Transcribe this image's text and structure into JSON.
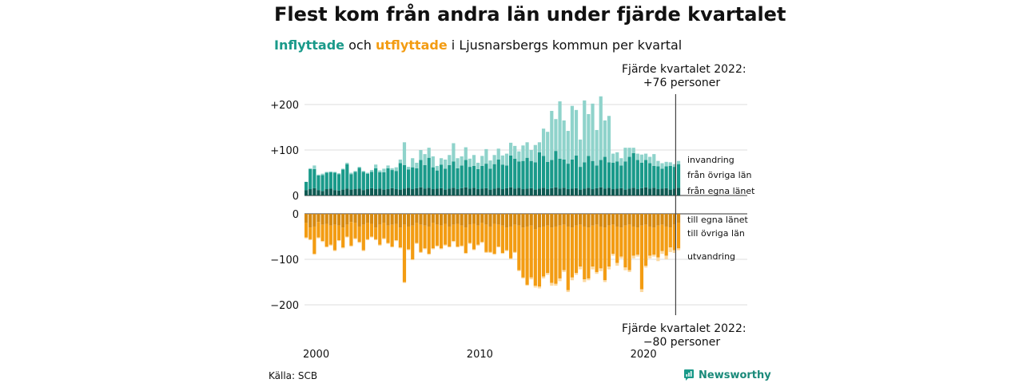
{
  "title": "Flest kom från andra län under fjärde kvartalet",
  "subtitle": {
    "inflyttade": "Inflyttade",
    "och": "och",
    "utflyttade": "utflyttade",
    "rest": "i Ljusnarsbergs kommun per kvartal"
  },
  "annotations": {
    "top_line1": "Fjärde kvartalet 2022:",
    "top_line2": "+76 personer",
    "bottom_line1": "Fjärde kvartalet 2022:",
    "bottom_line2": "−80 personer"
  },
  "source": "Källa: SCB",
  "brand": "Newsworthy",
  "brand_icon": "newsworthy-logo-icon",
  "colors": {
    "egna_in": "#0e5a52",
    "ovriga_in": "#1a9a8a",
    "invandring": "#8fd3cb",
    "egna_out": "#d68910",
    "ovriga_out": "#f39c12",
    "utvandring": "#fcd9a0",
    "grid": "#dddddd",
    "marker_line": "#444444"
  },
  "chart_data": {
    "type": "bar",
    "stacked": true,
    "x_start_year": 2000,
    "period": "quarter",
    "quarters": 92,
    "x_ticks": [
      "2000",
      "2010",
      "2020"
    ],
    "ylim_top": [
      0,
      220
    ],
    "ylim_bottom": [
      -220,
      0
    ],
    "y_ticks_top": [
      "+200",
      "+100",
      "0"
    ],
    "y_ticks_bottom": [
      "0",
      "−100",
      "−200"
    ],
    "grid": true,
    "series_in_labels": [
      "invandring",
      "från övriga län",
      "från egna länet"
    ],
    "series_out_labels": [
      "till egna länet",
      "till övriga län",
      "utvandring"
    ],
    "inflow": {
      "egna": [
        12,
        14,
        16,
        12,
        10,
        14,
        15,
        12,
        11,
        13,
        15,
        13,
        14,
        15,
        12,
        14,
        16,
        14,
        15,
        13,
        14,
        16,
        14,
        13,
        15,
        17,
        14,
        16,
        18,
        15,
        17,
        14,
        15,
        16,
        13,
        15,
        17,
        14,
        16,
        18,
        15,
        17,
        14,
        15,
        16,
        13,
        15,
        17,
        14,
        16,
        18,
        15,
        17,
        14,
        15,
        16,
        13,
        15,
        17,
        14,
        16,
        18,
        15,
        17,
        14,
        15,
        16,
        13,
        15,
        17,
        14,
        16,
        18,
        15,
        17,
        14,
        15,
        16,
        13,
        15,
        17,
        14,
        16,
        18,
        15,
        17,
        14,
        15,
        16,
        13,
        15,
        17
      ],
      "ovriga": [
        18,
        44,
        42,
        32,
        35,
        36,
        36,
        38,
        36,
        44,
        54,
        34,
        38,
        46,
        40,
        34,
        36,
        46,
        36,
        38,
        46,
        40,
        40,
        58,
        52,
        40,
        48,
        44,
        60,
        52,
        66,
        48,
        40,
        52,
        46,
        52,
        58,
        46,
        50,
        60,
        48,
        48,
        44,
        50,
        54,
        46,
        54,
        62,
        54,
        50,
        70,
        66,
        58,
        62,
        68,
        60,
        60,
        80,
        70,
        60,
        62,
        80,
        66,
        62,
        56,
        64,
        72,
        50,
        58,
        70,
        62,
        50,
        60,
        70,
        56,
        58,
        60,
        50,
        62,
        70,
        76,
        64,
        56,
        60,
        56,
        48,
        50,
        44,
        48,
        52,
        48,
        52
      ],
      "invandring": [
        0,
        2,
        8,
        2,
        3,
        2,
        2,
        2,
        2,
        2,
        3,
        3,
        2,
        2,
        2,
        2,
        4,
        8,
        4,
        8,
        6,
        4,
        8,
        8,
        50,
        6,
        20,
        12,
        22,
        24,
        22,
        24,
        10,
        14,
        20,
        22,
        40,
        22,
        20,
        28,
        18,
        24,
        14,
        22,
        32,
        18,
        20,
        24,
        20,
        26,
        28,
        28,
        22,
        34,
        34,
        24,
        38,
        22,
        60,
        66,
        108,
        70,
        126,
        86,
        72,
        118,
        100,
        60,
        136,
        92,
        126,
        78,
        140,
        80,
        102,
        20,
        20,
        16,
        30,
        20,
        12,
        14,
        18,
        14,
        14,
        26,
        12,
        12,
        10,
        8,
        6,
        7
      ]
    },
    "outflow": {
      "egna": [
        20,
        30,
        28,
        18,
        24,
        22,
        26,
        24,
        26,
        30,
        24,
        18,
        20,
        28,
        24,
        20,
        22,
        30,
        24,
        20,
        26,
        24,
        22,
        30,
        24,
        28,
        26,
        20,
        24,
        26,
        28,
        20,
        24,
        26,
        22,
        28,
        24,
        22,
        26,
        30,
        24,
        22,
        26,
        20,
        24,
        28,
        22,
        24,
        26,
        30,
        28,
        24,
        26,
        30,
        28,
        26,
        34,
        30,
        28,
        26,
        30,
        28,
        26,
        24,
        28,
        30,
        26,
        24,
        28,
        30,
        26,
        24,
        28,
        30,
        26,
        24,
        28,
        30,
        26,
        24,
        28,
        30,
        26,
        24,
        28,
        30,
        26,
        24,
        28,
        30,
        24,
        20
      ],
      "ovriga": [
        32,
        26,
        60,
        34,
        36,
        50,
        42,
        56,
        32,
        44,
        26,
        52,
        34,
        34,
        56,
        36,
        28,
        26,
        44,
        34,
        38,
        48,
        36,
        44,
        126,
        50,
        74,
        44,
        60,
        50,
        60,
        56,
        46,
        50,
        46,
        44,
        36,
        50,
        44,
        56,
        40,
        56,
        42,
        42,
        60,
        56,
        66,
        48,
        60,
        50,
        70,
        60,
        98,
        110,
        128,
        114,
        124,
        130,
        110,
        104,
        122,
        126,
        116,
        100,
        140,
        110,
        104,
        92,
        116,
        112,
        90,
        104,
        92,
        116,
        90,
        64,
        80,
        64,
        92,
        100,
        64,
        60,
        140,
        90,
        64,
        60,
        70,
        58,
        64,
        44,
        56,
        56
      ],
      "utvandring": [
        2,
        2,
        2,
        2,
        2,
        2,
        2,
        2,
        2,
        2,
        2,
        2,
        2,
        2,
        2,
        2,
        2,
        2,
        2,
        2,
        2,
        2,
        2,
        2,
        2,
        2,
        2,
        2,
        2,
        2,
        2,
        2,
        2,
        2,
        2,
        2,
        2,
        2,
        2,
        2,
        2,
        2,
        2,
        2,
        2,
        2,
        2,
        2,
        2,
        2,
        2,
        2,
        2,
        2,
        2,
        4,
        4,
        4,
        4,
        4,
        6,
        4,
        6,
        4,
        4,
        6,
        4,
        6,
        6,
        4,
        6,
        4,
        6,
        4,
        6,
        4,
        6,
        4,
        6,
        4,
        6,
        4,
        6,
        4,
        6,
        4,
        8,
        6,
        8,
        10,
        6,
        4
      ]
    }
  }
}
